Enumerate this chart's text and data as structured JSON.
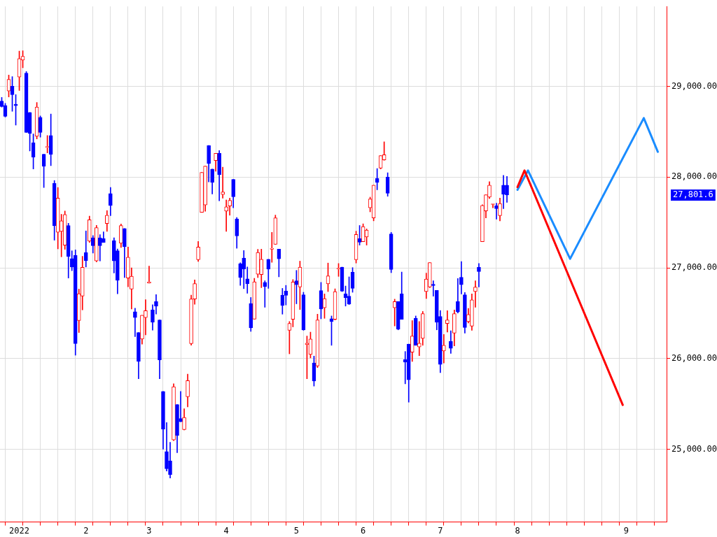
{
  "chart_data": {
    "type": "candlestick",
    "categories": [
      null,
      null,
      null,
      null,
      null,
      "2022",
      null,
      null,
      null,
      null,
      null,
      null,
      null,
      null,
      null,
      null,
      null,
      null,
      null,
      null,
      null,
      null,
      null,
      null,
      "2",
      null,
      null,
      null,
      null,
      null,
      null,
      null,
      null,
      null,
      null,
      null,
      null,
      null,
      null,
      null,
      null,
      null,
      "3",
      null,
      null,
      null,
      null,
      null,
      null,
      null,
      null,
      null,
      null,
      null,
      null,
      null,
      null,
      null,
      null,
      null,
      null,
      null,
      null,
      null,
      "4",
      null,
      null,
      null,
      null,
      null,
      null,
      null,
      null,
      null,
      null,
      null,
      null,
      null,
      null,
      null,
      null,
      null,
      null,
      null,
      "5",
      null,
      null,
      null,
      null,
      null,
      null,
      null,
      null,
      null,
      null,
      null,
      null,
      null,
      null,
      null,
      null,
      null,
      null,
      "6",
      null,
      null,
      null,
      null,
      null,
      null,
      null,
      null,
      null,
      null,
      null,
      null,
      null,
      null,
      null,
      null,
      null,
      null,
      null,
      null,
      null,
      "7",
      null,
      null,
      null,
      null,
      null,
      null,
      null,
      null,
      null,
      null,
      null,
      null,
      null,
      null,
      null,
      null,
      null,
      null,
      null,
      null,
      null,
      "8",
      null,
      null,
      null,
      null,
      null,
      null,
      null,
      null,
      null,
      null,
      null,
      null,
      null,
      null,
      null,
      null,
      null,
      null,
      null,
      null,
      null,
      null,
      null,
      null,
      null,
      null,
      null,
      null,
      null,
      null,
      "9",
      null,
      null,
      null,
      null,
      null,
      null,
      null,
      null,
      null,
      null,
      null
    ],
    "ohlc": [
      [
        28837,
        28878,
        28771,
        28776
      ],
      [
        28789,
        28812,
        28662,
        28669
      ],
      [
        28949,
        29125,
        28883,
        29076
      ],
      [
        29000,
        29107,
        28725,
        28908
      ],
      [
        28802,
        28908,
        28573,
        28786
      ],
      [
        29102,
        29387,
        28954,
        29305
      ],
      [
        29290,
        29392,
        29204,
        29331
      ],
      [
        29145,
        29163,
        28491,
        28491
      ],
      [
        28712,
        28712,
        28288,
        28481
      ],
      [
        28379,
        28476,
        28089,
        28221
      ],
      [
        28450,
        28822,
        28420,
        28771
      ],
      [
        28659,
        28674,
        28440,
        28491
      ],
      [
        28252,
        28252,
        27885,
        28120
      ],
      [
        28328,
        28458,
        28267,
        28333
      ],
      [
        28458,
        28695,
        28125,
        28252
      ],
      [
        27931,
        27962,
        27305,
        27463
      ],
      [
        27392,
        27885,
        27209,
        27768
      ],
      [
        27402,
        27590,
        27122,
        27519
      ],
      [
        27249,
        27626,
        27204,
        27588
      ],
      [
        27466,
        27491,
        26888,
        27127
      ],
      [
        27102,
        27188,
        26969,
        27010
      ],
      [
        27137,
        27198,
        26038,
        26165
      ],
      [
        26420,
        26766,
        26288,
        26715
      ],
      [
        26690,
        27127,
        26537,
        27005
      ],
      [
        27168,
        27407,
        27010,
        27081
      ],
      [
        27295,
        27570,
        27280,
        27529
      ],
      [
        27331,
        27356,
        27163,
        27244
      ],
      [
        27076,
        27468,
        27066,
        27443
      ],
      [
        27331,
        27366,
        27076,
        27244
      ],
      [
        27321,
        27397,
        27280,
        27280
      ],
      [
        27489,
        27631,
        27402,
        27580
      ],
      [
        27819,
        27885,
        27575,
        27687
      ],
      [
        27300,
        27331,
        26944,
        27076
      ],
      [
        27188,
        27209,
        26715,
        26863
      ],
      [
        27270,
        27483,
        27224,
        27466
      ],
      [
        27433,
        27433,
        26893,
        27234
      ],
      [
        26888,
        27229,
        26791,
        27117
      ],
      [
        26766,
        27000,
        26547,
        26908
      ],
      [
        26517,
        26555,
        26242,
        26453
      ],
      [
        26288,
        26288,
        25779,
        25970
      ],
      [
        26216,
        26478,
        26160,
        26478
      ],
      [
        26453,
        26649,
        26262,
        26529
      ],
      [
        26832,
        27020,
        26832,
        26847
      ],
      [
        26537,
        26593,
        26313,
        26400
      ],
      [
        26628,
        26705,
        26491,
        26578
      ],
      [
        26427,
        26427,
        25779,
        25987
      ],
      [
        25639,
        25639,
        25003,
        25224
      ],
      [
        24977,
        25295,
        24761,
        24786
      ],
      [
        24875,
        25079,
        24685,
        24723
      ],
      [
        25104,
        25723,
        25097,
        25690
      ],
      [
        25494,
        25494,
        24964,
        25155
      ],
      [
        25341,
        25639,
        25305,
        25305
      ],
      [
        25219,
        25448,
        25214,
        25351
      ],
      [
        25580,
        25830,
        25468,
        25758
      ],
      [
        26165,
        26700,
        26148,
        26657
      ],
      [
        26657,
        26868,
        26598,
        26827
      ],
      [
        27089,
        27290,
        27071,
        27229
      ],
      [
        27611,
        28051,
        27611,
        28051
      ],
      [
        27692,
        28120,
        27623,
        28120
      ],
      [
        28349,
        28349,
        27947,
        28150
      ],
      [
        28089,
        28089,
        27814,
        27941
      ],
      [
        28181,
        28262,
        28064,
        28262
      ],
      [
        28262,
        28293,
        27738,
        28028
      ],
      [
        27809,
        28109,
        27768,
        27835
      ],
      [
        27626,
        27748,
        27402,
        27672
      ],
      [
        27682,
        27768,
        27580,
        27743
      ],
      [
        27975,
        27975,
        27662,
        27784
      ],
      [
        27539,
        27555,
        27216,
        27351
      ],
      [
        27046,
        27056,
        26807,
        26893
      ],
      [
        27107,
        27191,
        26771,
        26987
      ],
      [
        26878,
        27010,
        26720,
        26827
      ],
      [
        26608,
        26674,
        26300,
        26338
      ],
      [
        26435,
        26885,
        26435,
        26847
      ],
      [
        26931,
        27204,
        26893,
        27170
      ],
      [
        26926,
        27206,
        26782,
        27094
      ],
      [
        26840,
        26858,
        26566,
        26794
      ],
      [
        27094,
        27094,
        26774,
        26985
      ],
      [
        27206,
        27391,
        27061,
        27216
      ],
      [
        27259,
        27581,
        27259,
        27551
      ],
      [
        27206,
        27206,
        26901,
        27099
      ],
      [
        26698,
        26774,
        26490,
        26586
      ],
      [
        26744,
        26807,
        26591,
        26698
      ],
      [
        26312,
        26409,
        26053,
        26388
      ],
      [
        26434,
        26871,
        26350,
        26845
      ],
      [
        26858,
        26972,
        26604,
        26815
      ],
      [
        26789,
        27074,
        26541,
        27008
      ],
      [
        26703,
        26731,
        26312,
        26317
      ],
      [
        26155,
        26249,
        25779,
        26170
      ],
      [
        26046,
        26292,
        26008,
        26216
      ],
      [
        25952,
        26028,
        25698,
        25754
      ],
      [
        25919,
        26490,
        25901,
        26426
      ],
      [
        26749,
        26840,
        26439,
        26546
      ],
      [
        26561,
        26713,
        26444,
        26662
      ],
      [
        26825,
        27053,
        26739,
        26911
      ],
      [
        26439,
        26470,
        26147,
        26409
      ],
      [
        26434,
        26769,
        26426,
        26739
      ],
      [
        26987,
        27048,
        26906,
        26997
      ],
      [
        27008,
        27008,
        26739,
        26744
      ],
      [
        26713,
        26800,
        26579,
        26673
      ],
      [
        26688,
        26901,
        26596,
        26601
      ],
      [
        26952,
        27003,
        26731,
        26774
      ],
      [
        27089,
        27404,
        27053,
        27368
      ],
      [
        27322,
        27467,
        27251,
        27282
      ],
      [
        27289,
        27485,
        27289,
        27454
      ],
      [
        27340,
        27429,
        27251,
        27416
      ],
      [
        27662,
        27779,
        27617,
        27759
      ],
      [
        27551,
        27911,
        27518,
        27911
      ],
      [
        27987,
        28094,
        27860,
        27942
      ],
      [
        28099,
        28236,
        28089,
        28236
      ],
      [
        28190,
        28388,
        28185,
        28246
      ],
      [
        28000,
        28048,
        27789,
        27822
      ],
      [
        27373,
        27391,
        26947,
        26982
      ],
      [
        26561,
        26655,
        26360,
        26629
      ],
      [
        26629,
        26629,
        26317,
        26325
      ],
      [
        26713,
        26954,
        26434,
        26434
      ],
      [
        25990,
        26079,
        25723,
        25962
      ],
      [
        26160,
        26160,
        25520,
        25767
      ],
      [
        26071,
        26419,
        25970,
        26249
      ],
      [
        26444,
        26470,
        26147,
        26147
      ],
      [
        26129,
        26409,
        26033,
        26170
      ],
      [
        26223,
        26520,
        26147,
        26495
      ],
      [
        26739,
        26942,
        26662,
        26876
      ],
      [
        26789,
        27058,
        26782,
        27058
      ],
      [
        26820,
        26858,
        26688,
        26805
      ],
      [
        26751,
        26751,
        26317,
        26401
      ],
      [
        26464,
        26530,
        25845,
        25937
      ],
      [
        26084,
        26266,
        25952,
        26147
      ],
      [
        26388,
        26528,
        26292,
        26426
      ],
      [
        26190,
        26307,
        26058,
        26114
      ],
      [
        26282,
        26536,
        26140,
        26495
      ],
      [
        26629,
        26883,
        26503,
        26515
      ],
      [
        26896,
        27069,
        26713,
        26815
      ],
      [
        26703,
        26728,
        26282,
        26343
      ],
      [
        26409,
        26553,
        26393,
        26485
      ],
      [
        26358,
        26713,
        26312,
        26647
      ],
      [
        26739,
        26858,
        26566,
        26789
      ],
      [
        27008,
        27048,
        26789,
        26959
      ],
      [
        27289,
        27695,
        27289,
        27688
      ],
      [
        27627,
        27805,
        27551,
        27805
      ],
      [
        27779,
        27949,
        27764,
        27911
      ],
      [
        27698,
        27703,
        27662,
        27703
      ],
      [
        27683,
        27713,
        27536,
        27652
      ],
      [
        27576,
        27769,
        27518,
        27708
      ],
      [
        27911,
        28018,
        27652,
        27810
      ],
      [
        27911,
        28008,
        27721,
        27801.6
      ],
      null,
      null,
      null,
      null,
      null,
      null,
      null,
      null,
      null,
      null,
      null,
      null,
      null,
      null,
      null,
      null,
      null,
      null,
      null,
      null,
      null,
      null,
      null,
      null,
      null,
      null,
      null,
      null,
      null,
      null,
      null,
      null,
      null,
      null,
      null,
      null,
      null,
      null,
      null,
      null,
      null,
      null,
      null,
      null,
      null
    ],
    "colors": [
      "#0000ff",
      "#0000ff",
      "#ff0000",
      "#0000ff",
      "#0000ff",
      "#ff0000",
      "#ff0000",
      "#0000ff",
      "#0000ff",
      "#0000ff",
      "#ff0000",
      "#0000ff",
      "#0000ff",
      "#ff0000",
      "#0000ff",
      "#0000ff",
      "#ff0000",
      "#ff0000",
      "#ff0000",
      "#0000ff",
      "#0000ff",
      "#0000ff",
      "#ff0000",
      "#ff0000",
      "#0000ff",
      "#ff0000",
      "#0000ff",
      "#ff0000",
      "#0000ff",
      "#0000ff",
      "#ff0000",
      "#0000ff",
      "#0000ff",
      "#0000ff",
      "#ff0000",
      "#0000ff",
      "#ff0000",
      "#ff0000",
      "#0000ff",
      "#0000ff",
      "#ff0000",
      "#ff0000",
      "#ff0000",
      "#0000ff",
      "#0000ff",
      "#0000ff",
      "#0000ff",
      "#0000ff",
      "#0000ff",
      "#ff0000",
      "#0000ff",
      "#0000ff",
      "#ff0000",
      "#ff0000",
      "#ff0000",
      "#ff0000",
      "#ff0000",
      "#ff0000",
      "#ff0000",
      "#0000ff",
      "#0000ff",
      "#ff0000",
      "#0000ff",
      "#ff0000",
      "#ff0000",
      "#ff0000",
      "#0000ff",
      "#0000ff",
      "#0000ff",
      "#0000ff",
      "#0000ff",
      "#0000ff",
      "#ff0000",
      "#ff0000",
      "#ff0000",
      "#0000ff",
      "#0000ff",
      "#ff0000",
      "#ff0000",
      "#0000ff",
      "#0000ff",
      "#0000ff",
      "#ff0000",
      "#ff0000",
      "#0000ff",
      "#ff0000",
      "#0000ff",
      "#ff0000",
      "#ff0000",
      "#0000ff",
      "#ff0000",
      "#0000ff",
      "#ff0000",
      "#ff0000",
      "#0000ff",
      "#ff0000",
      "#ff0000",
      "#0000ff",
      "#0000ff",
      "#0000ff",
      "#0000ff",
      "#ff0000",
      "#0000ff",
      "#ff0000",
      "#ff0000",
      "#ff0000",
      "#ff0000",
      "#0000ff",
      "#ff0000",
      "#ff0000",
      "#0000ff",
      "#0000ff",
      "#ff0000",
      "#0000ff",
      "#0000ff",
      "#0000ff",
      "#0000ff",
      "#ff0000",
      "#0000ff",
      "#ff0000",
      "#ff0000",
      "#ff0000",
      "#ff0000",
      "#0000ff",
      "#0000ff",
      "#0000ff",
      "#ff0000",
      "#ff0000",
      "#0000ff",
      "#ff0000",
      "#0000ff",
      "#0000ff",
      "#0000ff",
      "#ff0000",
      "#ff0000",
      "#ff0000",
      "#0000ff",
      "#ff0000",
      "#ff0000",
      "#ff0000",
      "#ff0000",
      "#0000ff",
      "#ff0000",
      "#0000ff",
      "#0000ff",
      null,
      null,
      null,
      null,
      null,
      null,
      null,
      null,
      null,
      null,
      null,
      null,
      null,
      null,
      null,
      null,
      null,
      null,
      null,
      null,
      null,
      null,
      null,
      null,
      null,
      null,
      null,
      null,
      null,
      null,
      null,
      null,
      null,
      null,
      null,
      null,
      null,
      null,
      null,
      null,
      null,
      null,
      null,
      null,
      null
    ],
    "series": [
      {
        "type": "line",
        "color": "#ff0000",
        "values": [
          null,
          null,
          null,
          null,
          null,
          null,
          null,
          null,
          null,
          null,
          null,
          null,
          null,
          null,
          null,
          null,
          null,
          null,
          null,
          null,
          null,
          null,
          null,
          null,
          null,
          null,
          null,
          null,
          null,
          null,
          null,
          null,
          null,
          null,
          null,
          null,
          null,
          null,
          null,
          null,
          null,
          null,
          null,
          null,
          null,
          null,
          null,
          null,
          null,
          null,
          null,
          null,
          null,
          null,
          null,
          null,
          null,
          null,
          null,
          null,
          null,
          null,
          null,
          null,
          null,
          null,
          null,
          null,
          null,
          null,
          null,
          null,
          null,
          null,
          null,
          null,
          null,
          null,
          null,
          null,
          null,
          null,
          null,
          null,
          null,
          null,
          null,
          null,
          null,
          null,
          null,
          null,
          null,
          null,
          null,
          null,
          null,
          null,
          null,
          null,
          null,
          null,
          null,
          null,
          null,
          null,
          null,
          null,
          null,
          null,
          null,
          null,
          null,
          null,
          null,
          null,
          null,
          null,
          null,
          null,
          null,
          null,
          null,
          null,
          null,
          null,
          null,
          null,
          null,
          null,
          null,
          null,
          null,
          null,
          null,
          null,
          null,
          null,
          null,
          null,
          null,
          null,
          null,
          null,
          null,
          null,
          null,
          27890,
          null,
          28073,
          null,
          null,
          null,
          null,
          null,
          null,
          null,
          null,
          null,
          null,
          null,
          null,
          null,
          null,
          null,
          null,
          null,
          null,
          null,
          null,
          null,
          null,
          null,
          null,
          null,
          null,
          null,
          25490,
          null,
          null,
          null,
          null,
          null,
          null,
          null,
          null,
          null,
          null,
          null,
          null
        ]
      },
      {
        "type": "line",
        "color": "#1a8cff",
        "values": [
          null,
          null,
          null,
          null,
          null,
          null,
          null,
          null,
          null,
          null,
          null,
          null,
          null,
          null,
          null,
          null,
          null,
          null,
          null,
          null,
          null,
          null,
          null,
          null,
          null,
          null,
          null,
          null,
          null,
          null,
          null,
          null,
          null,
          null,
          null,
          null,
          null,
          null,
          null,
          null,
          null,
          null,
          null,
          null,
          null,
          null,
          null,
          null,
          null,
          null,
          null,
          null,
          null,
          null,
          null,
          null,
          null,
          null,
          null,
          null,
          null,
          null,
          null,
          null,
          null,
          null,
          null,
          null,
          null,
          null,
          null,
          null,
          null,
          null,
          null,
          null,
          null,
          null,
          null,
          null,
          null,
          null,
          null,
          null,
          null,
          null,
          null,
          null,
          null,
          null,
          null,
          null,
          null,
          null,
          null,
          null,
          null,
          null,
          null,
          null,
          null,
          null,
          null,
          null,
          null,
          null,
          null,
          null,
          null,
          null,
          null,
          null,
          null,
          null,
          null,
          null,
          null,
          null,
          null,
          null,
          null,
          null,
          null,
          null,
          null,
          null,
          null,
          null,
          null,
          null,
          null,
          null,
          null,
          null,
          null,
          null,
          null,
          null,
          null,
          null,
          null,
          null,
          null,
          null,
          null,
          null,
          null,
          27860,
          null,
          null,
          28073,
          null,
          null,
          null,
          null,
          null,
          null,
          null,
          null,
          null,
          null,
          null,
          27100,
          null,
          null,
          null,
          null,
          null,
          null,
          null,
          null,
          null,
          null,
          null,
          null,
          null,
          null,
          null,
          null,
          null,
          null,
          null,
          null,
          28650,
          null,
          null,
          null,
          28278,
          null,
          null
        ]
      }
    ],
    "ylim": [
      24200,
      29880
    ],
    "yticks": [
      {
        "value": 25000,
        "label": "25,000.00"
      },
      {
        "value": 26000,
        "label": "26,000.00"
      },
      {
        "value": 27000,
        "label": "27,000.00"
      },
      {
        "value": 28000,
        "label": "28,000.00"
      },
      {
        "value": 29000,
        "label": "29,000.00"
      }
    ],
    "grid": true,
    "annotations": [
      "27,801.6"
    ]
  }
}
